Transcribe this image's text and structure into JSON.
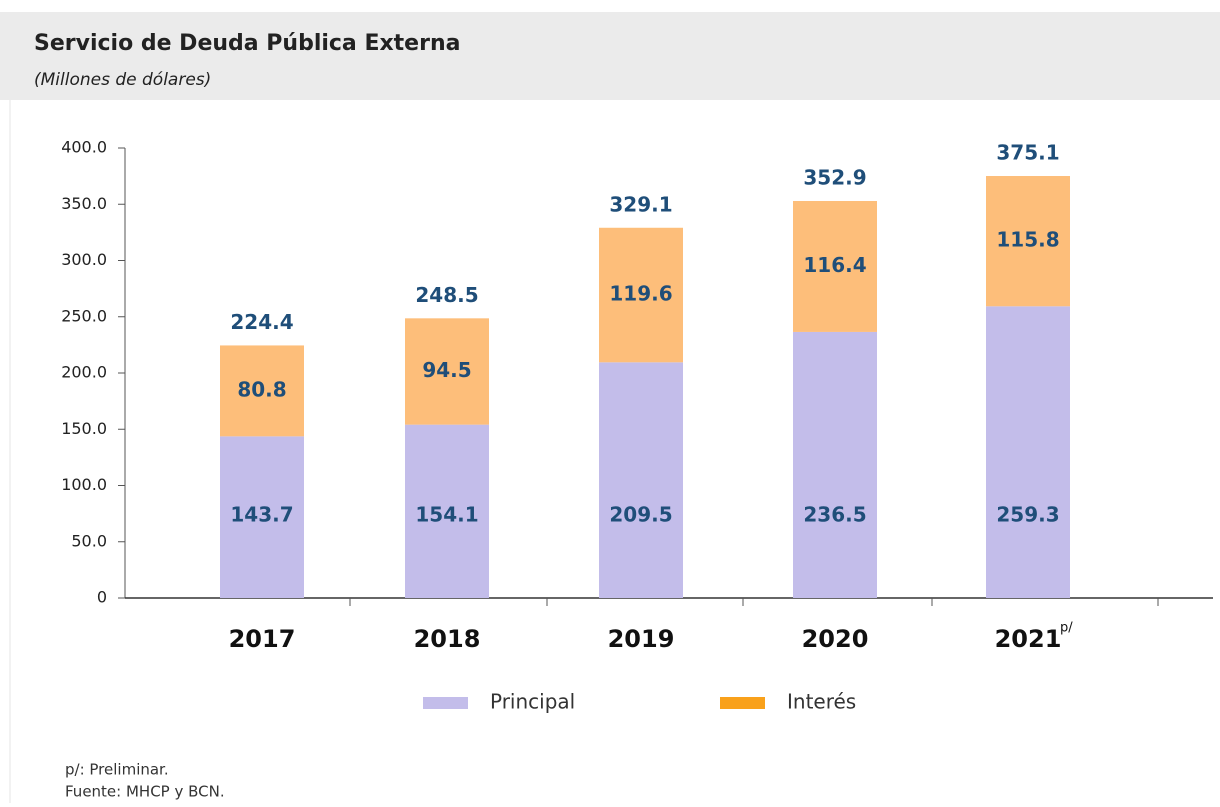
{
  "chart_data": {
    "type": "stacked_bar",
    "title": "Servicio de Deuda Pública Externa",
    "subtitle": "(Millones de dólares)",
    "categories": [
      "2017",
      "2018",
      "2019",
      "2020",
      "2021"
    ],
    "category_notes": [
      null,
      null,
      null,
      null,
      "p/"
    ],
    "series": [
      {
        "name": "Principal",
        "color": "#c3bdea",
        "legend_color": "#c3bdea",
        "values": [
          143.7,
          154.1,
          209.5,
          236.5,
          259.3
        ]
      },
      {
        "name": "Interés",
        "color": "#fdbe7a",
        "legend_color": "#f9a11b",
        "values": [
          80.8,
          94.5,
          119.6,
          116.4,
          115.8
        ]
      }
    ],
    "totals": [
      224.4,
      248.5,
      329.1,
      352.9,
      375.1
    ],
    "ylim": [
      0,
      400
    ],
    "yticks": [
      0,
      {
        "value": 50,
        "label": "50.0"
      },
      {
        "value": 100,
        "label": "100.0"
      },
      {
        "value": 150,
        "label": "150.0"
      },
      {
        "value": 200,
        "label": "200.0"
      },
      {
        "value": 250,
        "label": "250.0"
      },
      {
        "value": 300,
        "label": "300.0"
      },
      {
        "value": 350,
        "label": "350.0"
      },
      {
        "value": 400,
        "label": "400.0"
      }
    ],
    "footnotes": [
      "p/: Preliminar.",
      "Fuente: MHCP y BCN."
    ]
  }
}
